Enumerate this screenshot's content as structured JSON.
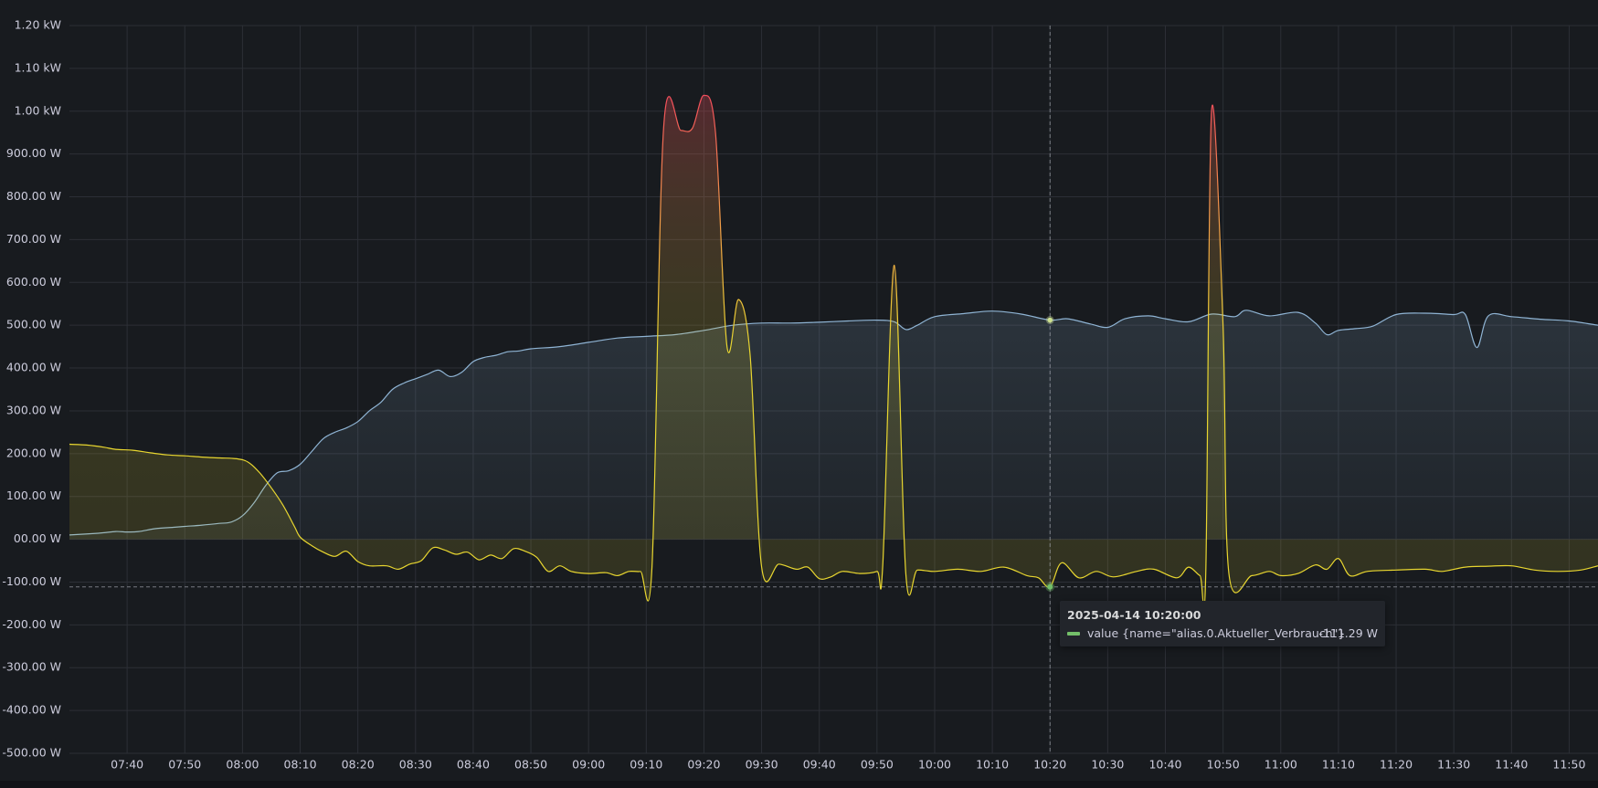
{
  "colors": {
    "background": "#181b1f",
    "grid": "#2c2f36",
    "text": "#ccccdc",
    "solar_line": "#8fb4d4",
    "grid_line_low": "#e8d62f",
    "grid_line_mid": "#f2994a",
    "grid_line_high": "#f2495c",
    "hover_point": "#73bf69"
  },
  "tooltip": {
    "time": "2025-04-14 10:20:00",
    "label": "value {name=\"alias.0.Aktueller_Verbrauch\"}",
    "value": "-111.29 W",
    "swatch_color": "#73bf69"
  },
  "chart_data": {
    "type": "area",
    "title": "",
    "xlabel": "",
    "ylabel": "",
    "ylim": [
      -500,
      1200
    ],
    "xlim": [
      "07:30",
      "11:55"
    ],
    "grid": true,
    "y_ticks": [
      {
        "v": 1200,
        "label": "1.20 kW"
      },
      {
        "v": 1100,
        "label": "1.10 kW"
      },
      {
        "v": 1000,
        "label": "1.00 kW"
      },
      {
        "v": 900,
        "label": "900.00 W"
      },
      {
        "v": 800,
        "label": "800.00 W"
      },
      {
        "v": 700,
        "label": "700.00 W"
      },
      {
        "v": 600,
        "label": "600.00 W"
      },
      {
        "v": 500,
        "label": "500.00 W"
      },
      {
        "v": 400,
        "label": "400.00 W"
      },
      {
        "v": 300,
        "label": "300.00 W"
      },
      {
        "v": 200,
        "label": "200.00 W"
      },
      {
        "v": 100,
        "label": "100.00 W"
      },
      {
        "v": 0,
        "label": "00.00 W"
      },
      {
        "v": -100,
        "label": "-100.00 W"
      },
      {
        "v": -200,
        "label": "-200.00 W"
      },
      {
        "v": -300,
        "label": "-300.00 W"
      },
      {
        "v": -400,
        "label": "-400.00 W"
      },
      {
        "v": -500,
        "label": "-500.00 W"
      }
    ],
    "x_ticks": [
      "07:40",
      "07:50",
      "08:00",
      "08:10",
      "08:20",
      "08:30",
      "08:40",
      "08:50",
      "09:00",
      "09:10",
      "09:20",
      "09:30",
      "09:40",
      "09:50",
      "10:00",
      "10:10",
      "10:20",
      "10:30",
      "10:40",
      "10:50",
      "11:00",
      "11:10",
      "11:20",
      "11:30",
      "11:40",
      "11:50"
    ],
    "hover": {
      "x": "10:20",
      "y": -111.29,
      "solar_y": 512
    },
    "series": [
      {
        "color": "#8fb4d4",
        "points": [
          [
            "07:30",
            10
          ],
          [
            "07:35",
            14
          ],
          [
            "07:38",
            18
          ],
          [
            "07:40",
            17
          ],
          [
            "07:42",
            18
          ],
          [
            "07:45",
            25
          ],
          [
            "07:48",
            28
          ],
          [
            "07:50",
            30
          ],
          [
            "07:53",
            33
          ],
          [
            "07:56",
            37
          ],
          [
            "07:58",
            40
          ],
          [
            "08:00",
            55
          ],
          [
            "08:02",
            85
          ],
          [
            "08:04",
            125
          ],
          [
            "08:06",
            155
          ],
          [
            "08:08",
            160
          ],
          [
            "08:10",
            175
          ],
          [
            "08:12",
            205
          ],
          [
            "08:14",
            235
          ],
          [
            "08:16",
            250
          ],
          [
            "08:18",
            260
          ],
          [
            "08:20",
            275
          ],
          [
            "08:22",
            300
          ],
          [
            "08:24",
            320
          ],
          [
            "08:26",
            350
          ],
          [
            "08:28",
            365
          ],
          [
            "08:30",
            375
          ],
          [
            "08:32",
            385
          ],
          [
            "08:34",
            395
          ],
          [
            "08:36",
            380
          ],
          [
            "08:38",
            390
          ],
          [
            "08:40",
            415
          ],
          [
            "08:42",
            425
          ],
          [
            "08:44",
            430
          ],
          [
            "08:46",
            438
          ],
          [
            "08:48",
            440
          ],
          [
            "08:50",
            445
          ],
          [
            "08:55",
            450
          ],
          [
            "09:00",
            460
          ],
          [
            "09:05",
            470
          ],
          [
            "09:10",
            474
          ],
          [
            "09:15",
            478
          ],
          [
            "09:20",
            488
          ],
          [
            "09:25",
            500
          ],
          [
            "09:30",
            505
          ],
          [
            "09:35",
            505
          ],
          [
            "09:40",
            507
          ],
          [
            "09:45",
            510
          ],
          [
            "09:50",
            512
          ],
          [
            "09:53",
            508
          ],
          [
            "09:55",
            490
          ],
          [
            "09:57",
            500
          ],
          [
            "10:00",
            520
          ],
          [
            "10:05",
            527
          ],
          [
            "10:10",
            533
          ],
          [
            "10:15",
            526
          ],
          [
            "10:20",
            512
          ],
          [
            "10:23",
            515
          ],
          [
            "10:27",
            503
          ],
          [
            "10:30",
            495
          ],
          [
            "10:33",
            515
          ],
          [
            "10:37",
            522
          ],
          [
            "10:40",
            515
          ],
          [
            "10:44",
            508
          ],
          [
            "10:48",
            526
          ],
          [
            "10:52",
            520
          ],
          [
            "10:54",
            535
          ],
          [
            "10:58",
            522
          ],
          [
            "11:03",
            530
          ],
          [
            "11:06",
            505
          ],
          [
            "11:08",
            478
          ],
          [
            "11:10",
            488
          ],
          [
            "11:13",
            492
          ],
          [
            "11:16",
            498
          ],
          [
            "11:20",
            525
          ],
          [
            "11:25",
            528
          ],
          [
            "11:30",
            525
          ],
          [
            "11:32",
            525
          ],
          [
            "11:34",
            448
          ],
          [
            "11:36",
            522
          ],
          [
            "11:40",
            520
          ],
          [
            "11:45",
            514
          ],
          [
            "11:50",
            510
          ],
          [
            "11:55",
            500
          ]
        ]
      },
      {
        "color": "#e8d62f",
        "points": [
          [
            "07:30",
            222
          ],
          [
            "07:33",
            220
          ],
          [
            "07:36",
            215
          ],
          [
            "07:38",
            210
          ],
          [
            "07:41",
            208
          ],
          [
            "07:44",
            202
          ],
          [
            "07:47",
            197
          ],
          [
            "07:50",
            195
          ],
          [
            "07:53",
            192
          ],
          [
            "07:56",
            190
          ],
          [
            "07:59",
            188
          ],
          [
            "08:01",
            180
          ],
          [
            "08:03",
            155
          ],
          [
            "08:05",
            120
          ],
          [
            "08:07",
            80
          ],
          [
            "08:09",
            30
          ],
          [
            "08:10",
            5
          ],
          [
            "08:12",
            -15
          ],
          [
            "08:14",
            -30
          ],
          [
            "08:16",
            -40
          ],
          [
            "08:18",
            -28
          ],
          [
            "08:20",
            -52
          ],
          [
            "08:22",
            -62
          ],
          [
            "08:25",
            -62
          ],
          [
            "08:27",
            -70
          ],
          [
            "08:29",
            -58
          ],
          [
            "08:31",
            -50
          ],
          [
            "08:33",
            -20
          ],
          [
            "08:35",
            -25
          ],
          [
            "08:37",
            -35
          ],
          [
            "08:39",
            -30
          ],
          [
            "08:41",
            -48
          ],
          [
            "08:43",
            -37
          ],
          [
            "08:45",
            -45
          ],
          [
            "08:47",
            -22
          ],
          [
            "08:49",
            -28
          ],
          [
            "08:51",
            -42
          ],
          [
            "08:53",
            -75
          ],
          [
            "08:55",
            -62
          ],
          [
            "08:57",
            -75
          ],
          [
            "09:00",
            -80
          ],
          [
            "09:03",
            -78
          ],
          [
            "09:05",
            -85
          ],
          [
            "09:07",
            -75
          ],
          [
            "09:09",
            -75
          ],
          [
            "09:11",
            -65
          ],
          [
            "09:13",
            960
          ],
          [
            "09:16",
            955
          ],
          [
            "09:18",
            960
          ],
          [
            "09:20",
            1037
          ],
          [
            "09:22",
            950
          ],
          [
            "09:24",
            450
          ],
          [
            "09:26",
            560
          ],
          [
            "09:28",
            430
          ],
          [
            "09:30",
            -65
          ],
          [
            "09:33",
            -58
          ],
          [
            "09:36",
            -70
          ],
          [
            "09:38",
            -65
          ],
          [
            "09:40",
            -92
          ],
          [
            "09:42",
            -88
          ],
          [
            "09:44",
            -75
          ],
          [
            "09:47",
            -80
          ],
          [
            "09:50",
            -75
          ],
          [
            "09:51",
            -60
          ],
          [
            "09:53",
            640
          ],
          [
            "09:55",
            -80
          ],
          [
            "09:57",
            -72
          ],
          [
            "10:00",
            -75
          ],
          [
            "10:04",
            -70
          ],
          [
            "10:08",
            -75
          ],
          [
            "10:12",
            -65
          ],
          [
            "10:16",
            -85
          ],
          [
            "10:18",
            -90
          ],
          [
            "10:20",
            -111.29
          ],
          [
            "10:22",
            -55
          ],
          [
            "10:25",
            -90
          ],
          [
            "10:28",
            -75
          ],
          [
            "10:31",
            -88
          ],
          [
            "10:35",
            -75
          ],
          [
            "10:38",
            -70
          ],
          [
            "10:42",
            -90
          ],
          [
            "10:44",
            -65
          ],
          [
            "10:46",
            -85
          ],
          [
            "10:47",
            -80
          ],
          [
            "10:48",
            1000
          ],
          [
            "10:50",
            500
          ],
          [
            "10:51",
            -80
          ],
          [
            "10:55",
            -85
          ],
          [
            "10:58",
            -75
          ],
          [
            "11:00",
            -85
          ],
          [
            "11:03",
            -80
          ],
          [
            "11:06",
            -60
          ],
          [
            "11:08",
            -70
          ],
          [
            "11:10",
            -45
          ],
          [
            "11:12",
            -85
          ],
          [
            "11:15",
            -75
          ],
          [
            "11:20",
            -72
          ],
          [
            "11:25",
            -70
          ],
          [
            "11:28",
            -75
          ],
          [
            "11:32",
            -65
          ],
          [
            "11:36",
            -63
          ],
          [
            "11:40",
            -62
          ],
          [
            "11:44",
            -72
          ],
          [
            "11:48",
            -75
          ],
          [
            "11:52",
            -72
          ],
          [
            "11:55",
            -62
          ]
        ]
      }
    ]
  }
}
